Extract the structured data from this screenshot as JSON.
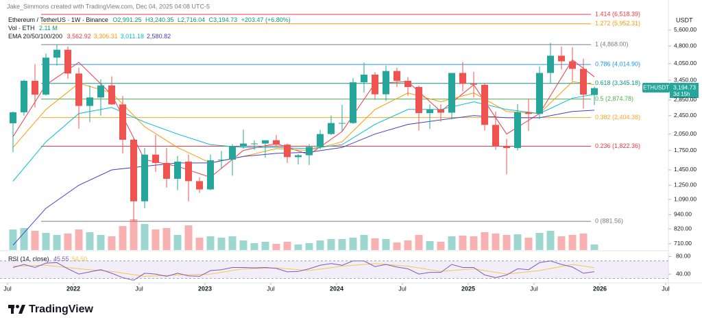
{
  "chart_data": {
    "type": "candlestick",
    "header": "Jake_Simmons created with TradingView.com, Dec 04, 2025 04:08 UTC-5",
    "symbol": "Ethereum / TetherUS · 1W · Binance",
    "ohlc_legend": [
      "O2,991.25",
      "H3,240.35",
      "L2,716.04",
      "C3,194.73",
      "+203.47 (+6.80%)"
    ],
    "volume_legend": "Vol · ETH",
    "volume_value": "2.11 M",
    "ema_legend": "EMA 20/50/100/200",
    "currency": "USDT",
    "price_tag": {
      "symbol": "ETHUSDT",
      "price": "3,194.73",
      "countdown": "3d 15h",
      "color": "#26a69a"
    },
    "up_color": "#26a69a",
    "down_color": "#ef5350",
    "log_scale": true,
    "ylim": [
      668,
      7490
    ],
    "yticks": [
      {
        "value": 5600,
        "label": "5,600.00"
      },
      {
        "value": 4800,
        "label": "4,800.00"
      },
      {
        "value": 4050,
        "label": "4,050.00"
      },
      {
        "value": 3450,
        "label": "3,450.00"
      },
      {
        "value": 2850,
        "label": "2,850.00"
      },
      {
        "value": 2450,
        "label": "2,450.00"
      },
      {
        "value": 2050,
        "label": "2,050.00"
      },
      {
        "value": 1750,
        "label": "1,750.00"
      },
      {
        "value": 1450,
        "label": "1,450.00"
      },
      {
        "value": 1250,
        "label": "1,250.00"
      },
      {
        "value": 1090,
        "label": "1,090.00"
      },
      {
        "value": 940,
        "label": "940.00"
      },
      {
        "value": 820,
        "label": "820.00"
      },
      {
        "value": 710,
        "label": "710.00"
      }
    ],
    "xticks": [
      {
        "value": "2021-07",
        "label": "Jul"
      },
      {
        "value": "2022-01",
        "label": "2022"
      },
      {
        "value": "2022-07",
        "label": "Jul"
      },
      {
        "value": "2023-01",
        "label": "2023"
      },
      {
        "value": "2023-07",
        "label": "Jul"
      },
      {
        "value": "2024-01",
        "label": "2024"
      },
      {
        "value": "2024-07",
        "label": "Jul"
      },
      {
        "value": "2025-01",
        "label": "2025"
      },
      {
        "value": "2025-07",
        "label": "Jul"
      },
      {
        "value": "2026-01",
        "label": "2026"
      },
      {
        "value": "2026-07",
        "label": "Jul"
      }
    ],
    "x": [
      "2021-07",
      "2021-08",
      "2021-09",
      "2021-10",
      "2021-11",
      "2021-12",
      "2022-01",
      "2022-02",
      "2022-03",
      "2022-04",
      "2022-05",
      "2022-06",
      "2022-07",
      "2022-08",
      "2022-09",
      "2022-10",
      "2022-11",
      "2022-12",
      "2023-01",
      "2023-02",
      "2023-03",
      "2023-04",
      "2023-05",
      "2023-06",
      "2023-07",
      "2023-08",
      "2023-09",
      "2023-10",
      "2023-11",
      "2023-12",
      "2024-01",
      "2024-02",
      "2024-03",
      "2024-04",
      "2024-05",
      "2024-06",
      "2024-07",
      "2024-08",
      "2024-09",
      "2024-10",
      "2024-11",
      "2024-12",
      "2025-01",
      "2025-02",
      "2025-03",
      "2025-04",
      "2025-05",
      "2025-06",
      "2025-07",
      "2025-08",
      "2025-09",
      "2025-10",
      "2025-11",
      "2025-12"
    ],
    "open": [
      2275,
      2530,
      3430,
      3000,
      4290,
      4630,
      3680,
      2690,
      2920,
      3280,
      2730,
      1940,
      1070,
      1680,
      1550,
      1330,
      1570,
      1300,
      1200,
      1590,
      1600,
      1820,
      1870,
      1870,
      1930,
      1850,
      1640,
      1670,
      1810,
      2050,
      2280,
      2280,
      3380,
      3640,
      3010,
      3770,
      3430,
      3230,
      2510,
      2600,
      2520,
      3700,
      3330,
      3300,
      2240,
      1820,
      1790,
      2530,
      2490,
      3700,
      4370,
      4140,
      3850,
      2991.25
    ],
    "high": [
      2550,
      3470,
      4030,
      4460,
      4870,
      4780,
      3900,
      3280,
      3480,
      3580,
      2960,
      1970,
      1790,
      2030,
      1790,
      1660,
      1680,
      1350,
      1680,
      1740,
      1860,
      2140,
      1930,
      1930,
      2030,
      1870,
      1690,
      1860,
      2130,
      2450,
      2720,
      3520,
      4090,
      3730,
      3980,
      3890,
      3560,
      3280,
      2730,
      2730,
      3680,
      4110,
      3740,
      3330,
      2550,
      1960,
      2740,
      2880,
      3940,
      4950,
      4770,
      4750,
      4250,
      3240.35
    ],
    "low": [
      1720,
      2450,
      2650,
      2970,
      3970,
      3500,
      2160,
      2300,
      2450,
      2720,
      1700,
      880,
      1000,
      1420,
      1220,
      1190,
      1070,
      1160,
      1190,
      1460,
      1370,
      1780,
      1760,
      1630,
      1830,
      1550,
      1530,
      1520,
      1770,
      2030,
      2100,
      2260,
      3060,
      2850,
      2820,
      3230,
      2970,
      2120,
      2150,
      2310,
      2360,
      3100,
      2920,
      2120,
      1760,
      1390,
      1750,
      2110,
      2370,
      3350,
      3820,
      3430,
      2620,
      2716.04
    ],
    "close": [
      2530,
      3430,
      3000,
      4290,
      4630,
      3680,
      2690,
      2920,
      3280,
      2730,
      1940,
      1070,
      1680,
      1550,
      1330,
      1570,
      1300,
      1200,
      1590,
      1600,
      1820,
      1870,
      1870,
      1930,
      1850,
      1640,
      1670,
      1810,
      2050,
      2280,
      2280,
      3380,
      3640,
      3010,
      3770,
      3430,
      3230,
      2510,
      2600,
      2520,
      3700,
      3330,
      3300,
      2240,
      1820,
      1790,
      2530,
      2490,
      3700,
      4370,
      4140,
      3850,
      3000,
      3194.73
    ],
    "volume": {
      "ylim": [
        0,
        60
      ],
      "values": [
        30,
        32,
        28,
        25,
        22,
        24,
        30,
        26,
        22,
        20,
        35,
        45,
        38,
        30,
        32,
        22,
        36,
        18,
        20,
        18,
        20,
        14,
        10,
        12,
        9,
        12,
        8,
        10,
        14,
        16,
        16,
        18,
        22,
        17,
        16,
        11,
        14,
        22,
        13,
        12,
        20,
        21,
        20,
        26,
        24,
        22,
        23,
        18,
        25,
        28,
        20,
        22,
        24,
        8
      ]
    },
    "ema": [
      {
        "color": "#f23645",
        "value_label": "3,562.92",
        "x": [
          "2021-07",
          "2021-10",
          "2022-01",
          "2022-04",
          "2022-07",
          "2022-10",
          "2023-01",
          "2023-04",
          "2023-07",
          "2023-10",
          "2024-01",
          "2024-04",
          "2024-07",
          "2024-10",
          "2025-01",
          "2025-04",
          "2025-07",
          "2025-10",
          "2025-12"
        ],
        "values": [
          2000,
          3300,
          4100,
          3000,
          1600,
          1500,
          1350,
          1750,
          1870,
          1680,
          2100,
          3350,
          3400,
          2550,
          3300,
          2050,
          2500,
          4200,
          3562.92
        ]
      },
      {
        "color": "#ff9800",
        "value_label": "3,306.31",
        "x": [
          "2021-07",
          "2021-10",
          "2022-01",
          "2022-04",
          "2022-07",
          "2022-10",
          "2023-01",
          "2023-04",
          "2023-07",
          "2023-10",
          "2024-01",
          "2024-04",
          "2024-07",
          "2024-10",
          "2025-01",
          "2025-04",
          "2025-07",
          "2025-10",
          "2025-12"
        ],
        "values": [
          1800,
          2600,
          3350,
          3050,
          2200,
          1800,
          1550,
          1650,
          1780,
          1750,
          1900,
          2600,
          3050,
          2800,
          3050,
          2550,
          2500,
          3400,
          3306.31
        ]
      },
      {
        "color": "#00bcd4",
        "value_label": "3,011.18",
        "x": [
          "2021-07",
          "2021-10",
          "2022-01",
          "2022-04",
          "2022-07",
          "2022-10",
          "2023-01",
          "2023-04",
          "2023-07",
          "2023-10",
          "2024-01",
          "2024-04",
          "2024-07",
          "2024-10",
          "2025-01",
          "2025-04",
          "2025-07",
          "2025-10",
          "2025-12"
        ],
        "values": [
          1300,
          1900,
          2500,
          2650,
          2300,
          2050,
          1850,
          1800,
          1800,
          1780,
          1850,
          2250,
          2600,
          2600,
          2800,
          2600,
          2500,
          2900,
          3011.18
        ]
      },
      {
        "color": "#3f3fc8",
        "value_label": "2,580.82",
        "x": [
          "2021-07",
          "2021-10",
          "2022-01",
          "2022-04",
          "2022-07",
          "2022-10",
          "2023-01",
          "2023-04",
          "2023-07",
          "2023-10",
          "2024-01",
          "2024-04",
          "2024-07",
          "2024-10",
          "2025-01",
          "2025-04",
          "2025-07",
          "2025-10",
          "2025-12"
        ],
        "values": [
          700,
          1000,
          1250,
          1450,
          1500,
          1550,
          1550,
          1650,
          1700,
          1720,
          1800,
          2050,
          2250,
          2350,
          2450,
          2400,
          2400,
          2550,
          2580.82
        ]
      }
    ],
    "fib_levels": [
      {
        "value": 6518.39,
        "label": "1.414 (6,518.39)",
        "color": "#f23645"
      },
      {
        "value": 5952.31,
        "label": "1.272 (5,952.31)",
        "color": "#ff9800"
      },
      {
        "value": 4868.0,
        "label": "1 (4,868.00)",
        "color": "#787b86"
      },
      {
        "value": 4014.9,
        "label": "0.786 (4,014.90)",
        "color": "#2196f3"
      },
      {
        "value": 3345.18,
        "label": "0.618 (3,345.18)",
        "color": "#089981"
      },
      {
        "value": 2874.78,
        "label": "0.5 (2,874.78)",
        "color": "#4caf50"
      },
      {
        "value": 2404.38,
        "label": "0.382 (2,404.38)",
        "color": "#f5a623"
      },
      {
        "value": 1822.36,
        "label": "0.236 (1,822.36)",
        "color": "#f23645"
      },
      {
        "value": 881.56,
        "label": "0 (881.56)",
        "color": "#787b86"
      }
    ],
    "rsi": {
      "legend": "RSI (14, close)",
      "value_label": "45.55",
      "color": "#7e57c2",
      "ylim": [
        20,
        90
      ],
      "band": [
        30,
        70
      ],
      "yticks": [
        {
          "value": 80,
          "label": "80.00"
        },
        {
          "value": 40,
          "label": "40.00"
        }
      ],
      "values": [
        55,
        62,
        55,
        65,
        66,
        52,
        40,
        45,
        50,
        42,
        32,
        26,
        42,
        40,
        35,
        42,
        36,
        35,
        48,
        50,
        55,
        55,
        54,
        55,
        53,
        45,
        46,
        52,
        60,
        64,
        60,
        70,
        70,
        57,
        62,
        56,
        52,
        40,
        44,
        44,
        62,
        55,
        55,
        38,
        32,
        38,
        52,
        50,
        66,
        70,
        62,
        56,
        42,
        45.55
      ],
      "ma": {
        "color": "#f7c548",
        "value_label": "54.50",
        "x": [
          "2021-07",
          "2021-10",
          "2022-01",
          "2022-04",
          "2022-07",
          "2022-10",
          "2023-01",
          "2023-04",
          "2023-07",
          "2023-10",
          "2024-01",
          "2024-04",
          "2024-07",
          "2024-10",
          "2025-01",
          "2025-04",
          "2025-07",
          "2025-10",
          "2025-12"
        ],
        "values": [
          58,
          60,
          52,
          46,
          35,
          38,
          40,
          52,
          54,
          48,
          58,
          64,
          58,
          46,
          52,
          40,
          48,
          62,
          54.5
        ]
      }
    },
    "brand": "TradingView"
  }
}
